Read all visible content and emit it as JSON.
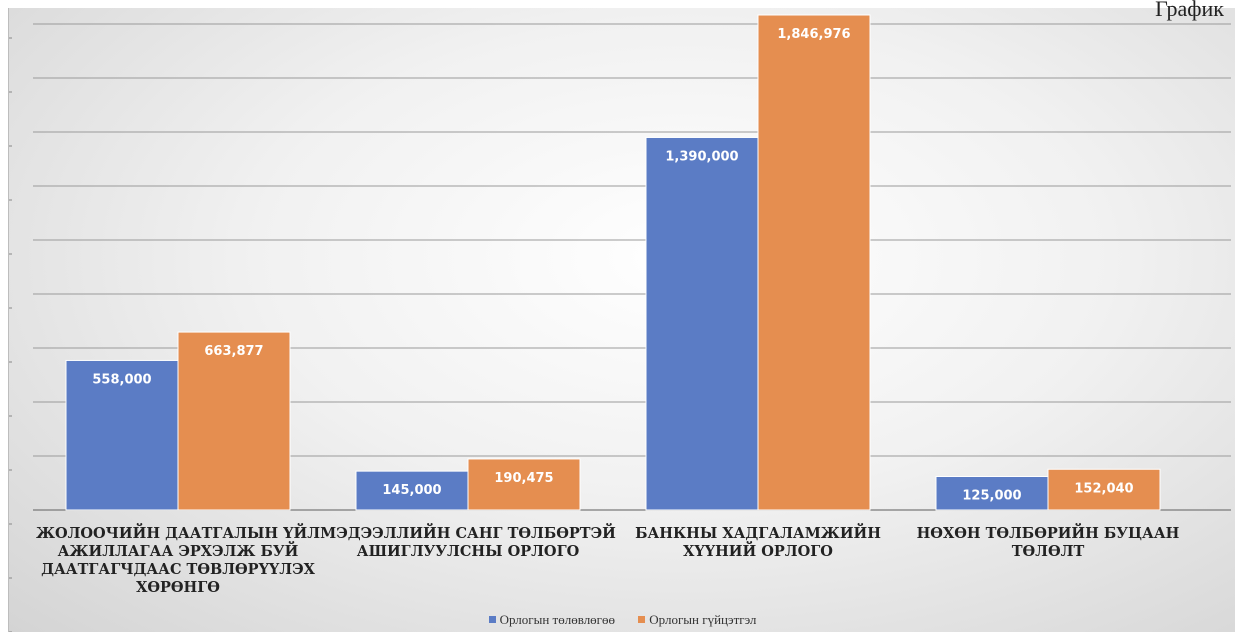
{
  "page_label": "График",
  "colors": {
    "planned": "#5b7cc5",
    "actual": "#e58e50"
  },
  "chart_data": {
    "type": "bar",
    "title": "",
    "xlabel": "",
    "ylabel": "",
    "grid": true,
    "legend_position": "bottom",
    "ylim": [
      0,
      1850000
    ],
    "categories": [
      [
        "ЖОЛООЧИЙН ДААТГАЛЫН ҮЙЛ",
        "АЖИЛЛАГАА ЭРХЭЛЖ БУЙ",
        "ДААТГАГЧДААС ТӨВЛӨРҮҮЛЭХ",
        "ХӨРӨНГӨ"
      ],
      [
        "МЭДЭЭЛЛИЙН САНГ ТӨЛБӨРТЭЙ",
        "АШИГЛУУЛСНЫ ОРЛОГО"
      ],
      [
        "БАНКНЫ ХАДГАЛАМЖИЙН",
        "ХҮҮНИЙ ОРЛОГО"
      ],
      [
        "НӨХӨН ТӨЛБӨРИЙН БУЦААН",
        "ТӨЛӨЛТ"
      ]
    ],
    "series": [
      {
        "name": "Орлогын төлөвлөгөө",
        "values": [
          558000,
          145000,
          1390000,
          125000
        ],
        "labels": [
          "558,000",
          "145,000",
          "1,390,000",
          "125,000"
        ]
      },
      {
        "name": "Орлогын гүйцэтгэл",
        "values": [
          663877,
          190475,
          1846976,
          152040
        ],
        "labels": [
          "663,877",
          "190,475",
          "1,846,976",
          "152,040"
        ]
      }
    ]
  }
}
